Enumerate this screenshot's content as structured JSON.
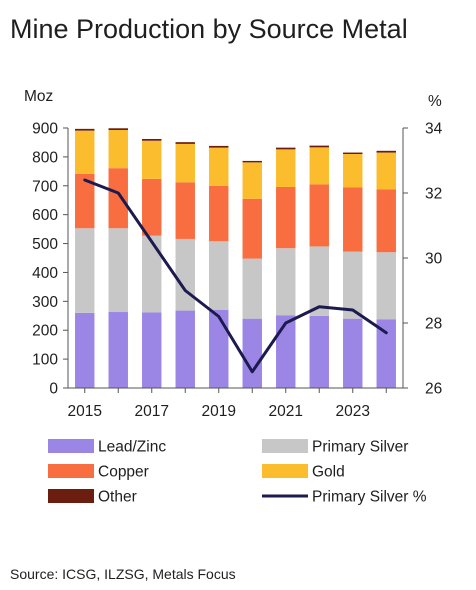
{
  "title": "Mine Production by Source Metal",
  "source": "Source: ICSG, ILZSG, Metals Focus",
  "chart_data": {
    "type": "bar",
    "stacked": true,
    "years": [
      2015,
      2016,
      2017,
      2018,
      2019,
      2020,
      2021,
      2022,
      2023,
      2024
    ],
    "x_tick_labels": [
      "2015",
      "2017",
      "2019",
      "2021",
      "2023"
    ],
    "y_left": {
      "label": "Moz",
      "ylim": [
        0,
        900
      ],
      "ticks": [
        0,
        100,
        200,
        300,
        400,
        500,
        600,
        700,
        800,
        900
      ]
    },
    "y_right": {
      "label": "%",
      "ylim": [
        26,
        34
      ],
      "ticks": [
        26,
        28,
        30,
        32,
        34
      ]
    },
    "series": [
      {
        "name": "Lead/Zinc",
        "color": "#9b86e6",
        "values": [
          260,
          263,
          262,
          268,
          270,
          240,
          252,
          250,
          240,
          238
        ]
      },
      {
        "name": "Primary Silver",
        "color": "#c7c7c7",
        "values": [
          293,
          290,
          265,
          248,
          238,
          208,
          232,
          240,
          232,
          232
        ]
      },
      {
        "name": "Copper",
        "color": "#f96e40",
        "values": [
          188,
          208,
          197,
          196,
          192,
          207,
          212,
          215,
          223,
          218
        ]
      },
      {
        "name": "Gold",
        "color": "#fbbd2d",
        "values": [
          150,
          132,
          132,
          133,
          132,
          126,
          130,
          128,
          115,
          127
        ]
      },
      {
        "name": "Other",
        "color": "#6b1d10",
        "values": [
          6,
          6,
          6,
          6,
          6,
          5,
          6,
          6,
          5,
          6
        ]
      }
    ],
    "line_series": {
      "name": "Primary Silver %",
      "color": "#1c1a4f",
      "axis": "right",
      "values": [
        32.4,
        32.0,
        30.5,
        29.0,
        28.2,
        26.5,
        28.0,
        28.5,
        28.4,
        27.7
      ]
    },
    "legend": {
      "placement": "bottom",
      "items": [
        {
          "label": "Lead/Zinc",
          "kind": "box",
          "color": "#9b86e6"
        },
        {
          "label": "Primary Silver",
          "kind": "box",
          "color": "#c7c7c7"
        },
        {
          "label": "Copper",
          "kind": "box",
          "color": "#f96e40"
        },
        {
          "label": "Gold",
          "kind": "box",
          "color": "#fbbd2d"
        },
        {
          "label": "Other",
          "kind": "box",
          "color": "#6b1d10"
        },
        {
          "label": "Primary Silver %",
          "kind": "line",
          "color": "#1c1a4f"
        }
      ]
    },
    "grid": false
  }
}
